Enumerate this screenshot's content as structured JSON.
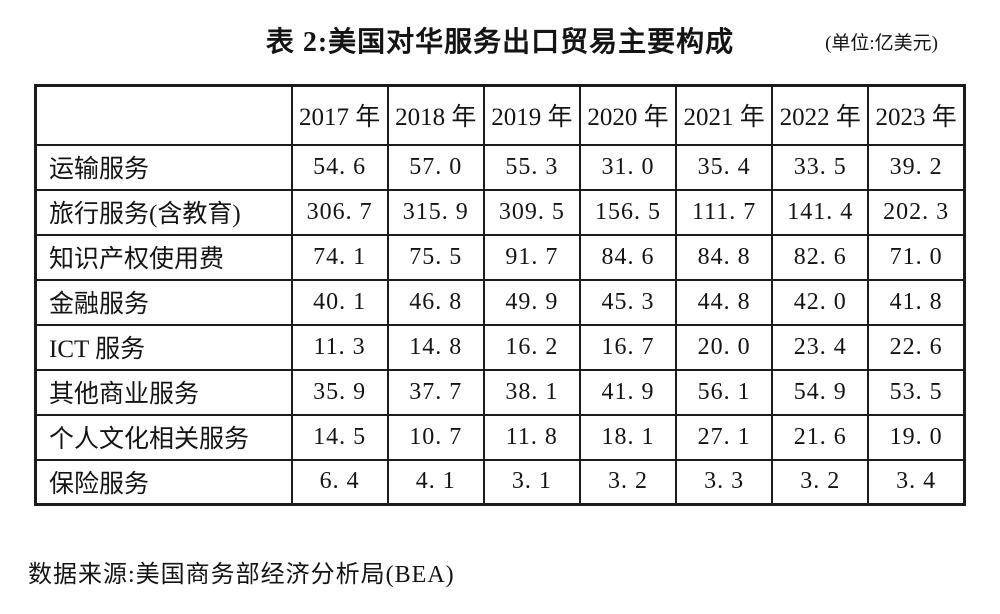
{
  "page": {
    "title": "表 2:美国对华服务出口贸易主要构成",
    "unit_note": "(单位:亿美元)",
    "source_note": "数据来源:美国商务部经济分析局(BEA)"
  },
  "table": {
    "corner_label": "",
    "columns": [
      "2017 年",
      "2018 年",
      "2019 年",
      "2020 年",
      "2021 年",
      "2022 年",
      "2023 年"
    ],
    "rows": [
      {
        "label": "运输服务",
        "values": [
          "54. 6",
          "57. 0",
          "55. 3",
          "31. 0",
          "35. 4",
          "33. 5",
          "39. 2"
        ]
      },
      {
        "label": "旅行服务(含教育)",
        "values": [
          "306. 7",
          "315. 9",
          "309. 5",
          "156. 5",
          "111. 7",
          "141. 4",
          "202. 3"
        ]
      },
      {
        "label": "知识产权使用费",
        "values": [
          "74. 1",
          "75. 5",
          "91. 7",
          "84. 6",
          "84. 8",
          "82. 6",
          "71. 0"
        ]
      },
      {
        "label": "金融服务",
        "values": [
          "40. 1",
          "46. 8",
          "49. 9",
          "45. 3",
          "44. 8",
          "42. 0",
          "41. 8"
        ]
      },
      {
        "label": "ICT 服务",
        "values": [
          "11. 3",
          "14. 8",
          "16. 2",
          "16. 7",
          "20. 0",
          "23. 4",
          "22. 6"
        ]
      },
      {
        "label": "其他商业服务",
        "values": [
          "35. 9",
          "37. 7",
          "38. 1",
          "41. 9",
          "56. 1",
          "54. 9",
          "53. 5"
        ]
      },
      {
        "label": "个人文化相关服务",
        "values": [
          "14. 5",
          "10. 7",
          "11. 8",
          "18. 1",
          "27. 1",
          "21. 6",
          "19. 0"
        ]
      },
      {
        "label": "保险服务",
        "values": [
          "6. 4",
          "4. 1",
          "3. 1",
          "3. 2",
          "3. 3",
          "3. 2",
          "3. 4"
        ]
      }
    ]
  },
  "chart_data": {
    "type": "table",
    "title": "表 2:美国对华服务出口贸易主要构成",
    "unit": "亿美元",
    "categories": [
      "2017",
      "2018",
      "2019",
      "2020",
      "2021",
      "2022",
      "2023"
    ],
    "series": [
      {
        "name": "运输服务",
        "values": [
          54.6,
          57.0,
          55.3,
          31.0,
          35.4,
          33.5,
          39.2
        ]
      },
      {
        "name": "旅行服务(含教育)",
        "values": [
          306.7,
          315.9,
          309.5,
          156.5,
          111.7,
          141.4,
          202.3
        ]
      },
      {
        "name": "知识产权使用费",
        "values": [
          74.1,
          75.5,
          91.7,
          84.6,
          84.8,
          82.6,
          71.0
        ]
      },
      {
        "name": "金融服务",
        "values": [
          40.1,
          46.8,
          49.9,
          45.3,
          44.8,
          42.0,
          41.8
        ]
      },
      {
        "name": "ICT 服务",
        "values": [
          11.3,
          14.8,
          16.2,
          16.7,
          20.0,
          23.4,
          22.6
        ]
      },
      {
        "name": "其他商业服务",
        "values": [
          35.9,
          37.7,
          38.1,
          41.9,
          56.1,
          54.9,
          53.5
        ]
      },
      {
        "name": "个人文化相关服务",
        "values": [
          14.5,
          10.7,
          11.8,
          18.1,
          27.1,
          21.6,
          19.0
        ]
      },
      {
        "name": "保险服务",
        "values": [
          6.4,
          4.1,
          3.1,
          3.2,
          3.3,
          3.2,
          3.4
        ]
      }
    ],
    "source": "美国商务部经济分析局(BEA)"
  }
}
